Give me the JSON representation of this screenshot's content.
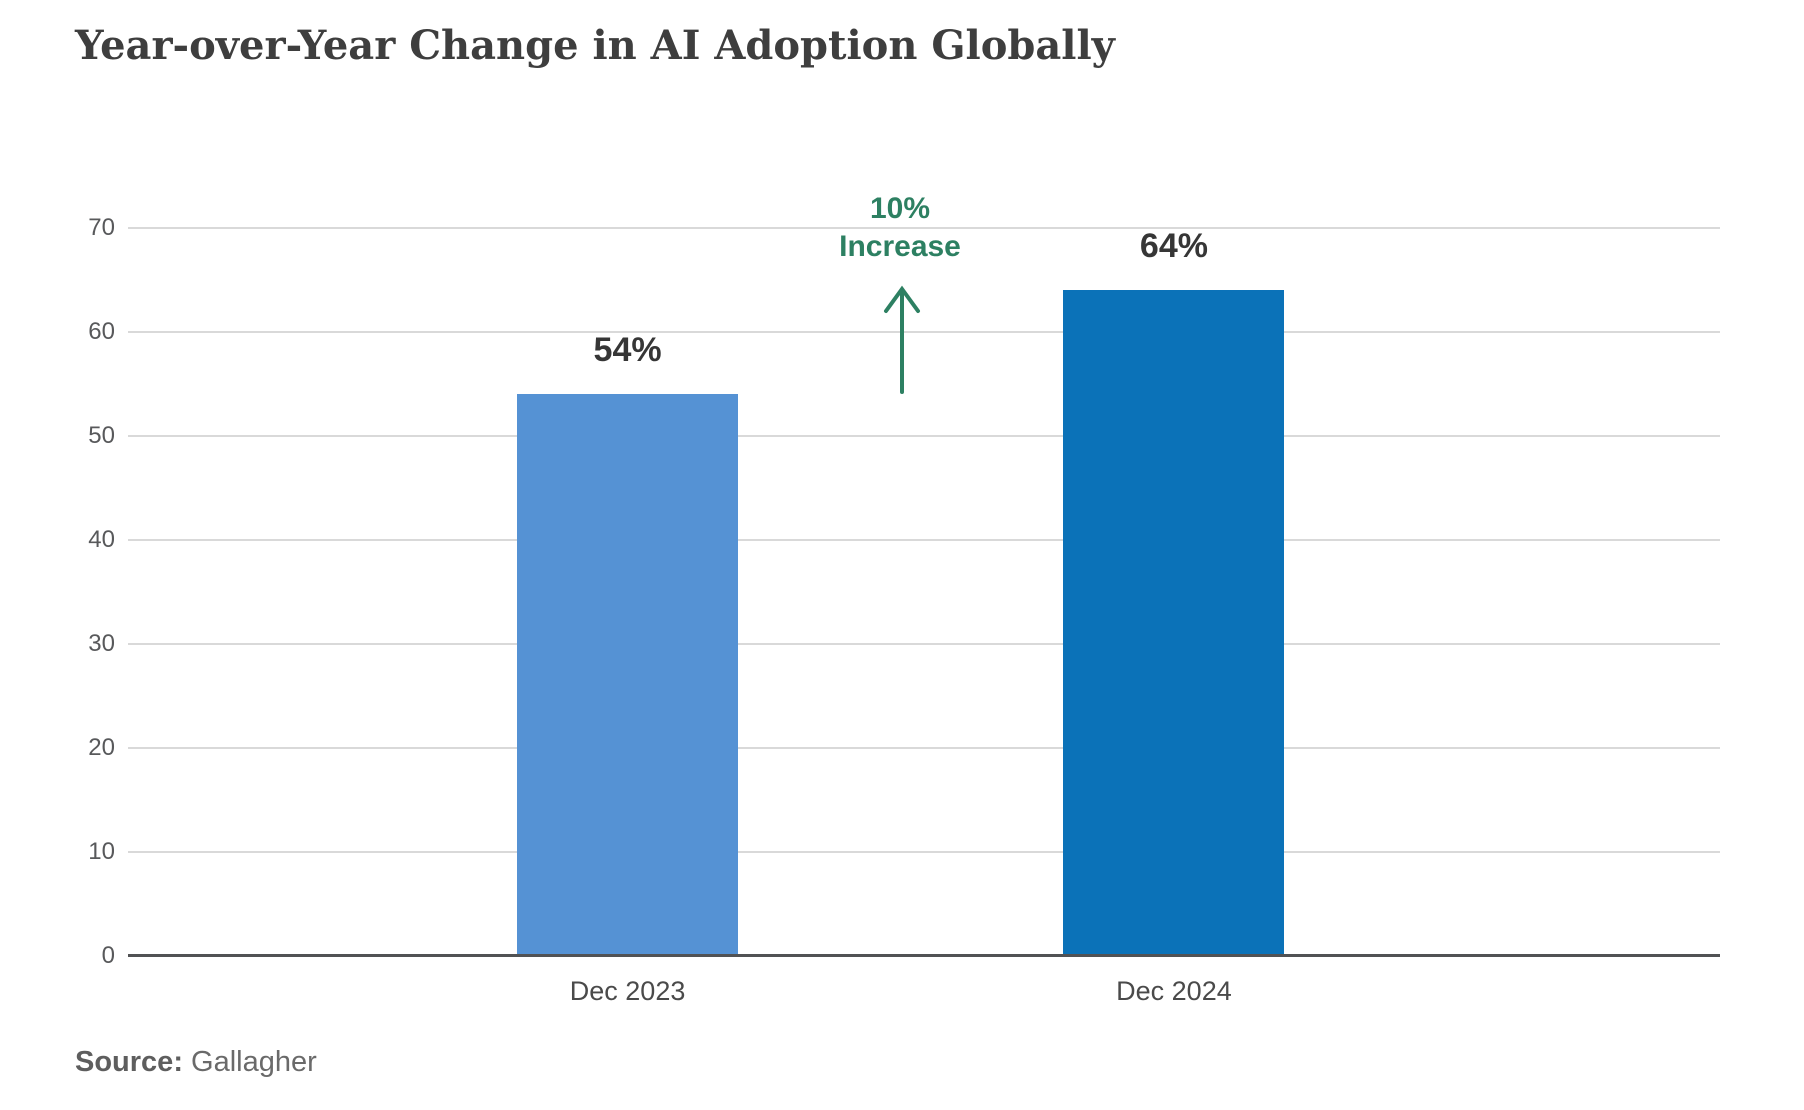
{
  "title": "Year-over-Year Change in AI Adoption Globally",
  "source": {
    "label": "Source:",
    "value": "Gallagher"
  },
  "colors": {
    "bar_2023": "#5592d4",
    "bar_2024": "#0b72b8",
    "annotation_green": "#2d8062",
    "gridline": "#d9d9d9",
    "axis_line": "#515254",
    "title_text": "#3e3e3e",
    "tick_text": "#58595b"
  },
  "chart_data": {
    "type": "bar",
    "title": "Year-over-Year Change in AI Adoption Globally",
    "categories": [
      "Dec 2023",
      "Dec 2024"
    ],
    "values": [
      54,
      64
    ],
    "value_labels": [
      "54%",
      "64%"
    ],
    "bar_colors": [
      "#5592d4",
      "#0b72b8"
    ],
    "xlabel": "",
    "ylabel": "",
    "ylim": [
      0,
      70
    ],
    "yticks": [
      0,
      10,
      20,
      30,
      40,
      50,
      60,
      70
    ],
    "grid": true,
    "legend_position": "none",
    "annotation": {
      "line1": "10%",
      "line2": "Increase",
      "color": "#2d8062",
      "icon": "up-arrow-icon",
      "between_categories": true
    },
    "source_label": "Source:",
    "source_value": "Gallagher"
  }
}
